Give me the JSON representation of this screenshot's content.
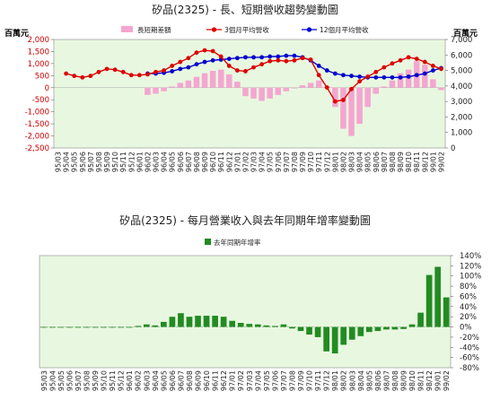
{
  "chart_data": [
    {
      "type": "bar+line",
      "title": "矽品(2325) -  長、短期營收趨勢變動圖",
      "left_unit": "百萬元",
      "right_unit": "百萬元",
      "legend": [
        "長短期差額",
        "3個月平均營收",
        "12個月平均營收"
      ],
      "colors": {
        "diff": "#f4a6d0",
        "ma3": "#dd0000",
        "ma12": "#0000cc",
        "panel": "#e8f8e0"
      },
      "left_axis": {
        "min": -2500,
        "max": 2000,
        "ticks": [
          2000,
          1500,
          1000,
          500,
          0,
          -500,
          -1000,
          -1500,
          -2000,
          -2500
        ],
        "tick_labels": [
          "2,000",
          "1,500",
          "1,000",
          "500",
          "0",
          "-500",
          "-1,000",
          "-1,500",
          "-2,000",
          "-2,500"
        ]
      },
      "right_axis": {
        "min": 0,
        "max": 7000,
        "ticks": [
          7000,
          6000,
          5000,
          4000,
          3000,
          2000,
          1000,
          0
        ],
        "tick_labels": [
          "7,000",
          "6,000",
          "5,000",
          "4,000",
          "3,000",
          "2,000",
          "1,000",
          "0"
        ]
      },
      "categories": [
        "95/03",
        "95/04",
        "95/05",
        "95/06",
        "95/07",
        "95/08",
        "95/09",
        "95/10",
        "95/11",
        "95/12",
        "96/01",
        "96/02",
        "96/03",
        "96/04",
        "96/05",
        "96/06",
        "96/07",
        "96/08",
        "96/09",
        "96/10",
        "96/11",
        "96/12",
        "97/01",
        "97/02",
        "97/03",
        "97/04",
        "97/05",
        "97/06",
        "97/07",
        "97/08",
        "97/09",
        "97/10",
        "97/11",
        "97/12",
        "98/01",
        "98/02",
        "98/03",
        "98/04",
        "98/05",
        "98/06",
        "98/07",
        "98/08",
        "98/09",
        "98/10",
        "98/11",
        "98/12",
        "99/01",
        "99/02"
      ],
      "diff": [
        null,
        null,
        null,
        null,
        null,
        null,
        null,
        null,
        null,
        null,
        null,
        -300,
        -250,
        -150,
        50,
        200,
        300,
        450,
        600,
        700,
        750,
        550,
        250,
        -350,
        -450,
        -550,
        -450,
        -300,
        -150,
        0,
        100,
        200,
        300,
        50,
        -800,
        -1700,
        -2000,
        -1500,
        -800,
        -250,
        50,
        300,
        600,
        750,
        1100,
        950,
        350,
        -100
      ],
      "ma3": [
        null,
        4800,
        4650,
        4550,
        4650,
        4900,
        5100,
        5050,
        4900,
        4700,
        4700,
        4750,
        4900,
        5000,
        5300,
        5550,
        5800,
        6150,
        6300,
        6250,
        5900,
        5300,
        5000,
        4950,
        5200,
        5400,
        5600,
        5650,
        5600,
        5650,
        5800,
        5700,
        4700,
        3900,
        3000,
        3100,
        3800,
        4300,
        4600,
        4900,
        5200,
        5450,
        5650,
        5850,
        5750,
        5550,
        5300,
        5100
      ],
      "ma12": [
        null,
        null,
        null,
        null,
        null,
        null,
        null,
        null,
        null,
        null,
        null,
        4800,
        4800,
        4850,
        4950,
        5100,
        5200,
        5400,
        5550,
        5650,
        5700,
        5750,
        5800,
        5850,
        5850,
        5850,
        5900,
        5900,
        5950,
        5950,
        5850,
        5650,
        5300,
        5000,
        4800,
        4700,
        4650,
        4600,
        4550,
        4550,
        4550,
        4550,
        4550,
        4600,
        4700,
        4800,
        5000,
        5150
      ]
    },
    {
      "type": "bar",
      "title": "矽品(2325)  -  每月營業收入與去年同期年增率變動圖",
      "legend": [
        "去年同期年增率"
      ],
      "colors": {
        "bar": "#228b22",
        "panel": "#e8f8e0"
      },
      "right_axis": {
        "min": -80,
        "max": 140,
        "ticks": [
          140,
          120,
          100,
          80,
          60,
          40,
          20,
          0,
          -20,
          -40,
          -60,
          -80
        ],
        "tick_labels": [
          "140%",
          "120%",
          "100%",
          "80%",
          "60%",
          "40%",
          "20%",
          "0%",
          "-20%",
          "-40%",
          "-60%",
          "-80%"
        ]
      },
      "categories": [
        "95/03",
        "95/04",
        "95/05",
        "95/06",
        "95/07",
        "95/08",
        "95/09",
        "95/10",
        "95/11",
        "95/12",
        "96/01",
        "96/02",
        "96/03",
        "96/04",
        "96/05",
        "96/06",
        "96/07",
        "96/08",
        "96/09",
        "96/10",
        "96/11",
        "96/12",
        "97/01",
        "97/02",
        "97/03",
        "97/04",
        "97/05",
        "97/06",
        "97/07",
        "97/08",
        "97/09",
        "97/10",
        "97/11",
        "97/12",
        "98/01",
        "98/02",
        "98/03",
        "98/04",
        "98/05",
        "98/06",
        "98/07",
        "98/08",
        "98/09",
        "98/10",
        "98/11",
        "98/12",
        "99/01",
        "99/02"
      ],
      "values": [
        0,
        0,
        0,
        0,
        0,
        0,
        0,
        0,
        0,
        0,
        0,
        2,
        5,
        3,
        10,
        20,
        27,
        20,
        22,
        22,
        22,
        20,
        12,
        8,
        6,
        5,
        3,
        2,
        5,
        -3,
        -8,
        -15,
        -20,
        -48,
        -52,
        -35,
        -25,
        -18,
        -10,
        -8,
        -5,
        -5,
        -4,
        5,
        28,
        102,
        118,
        58
      ]
    }
  ]
}
